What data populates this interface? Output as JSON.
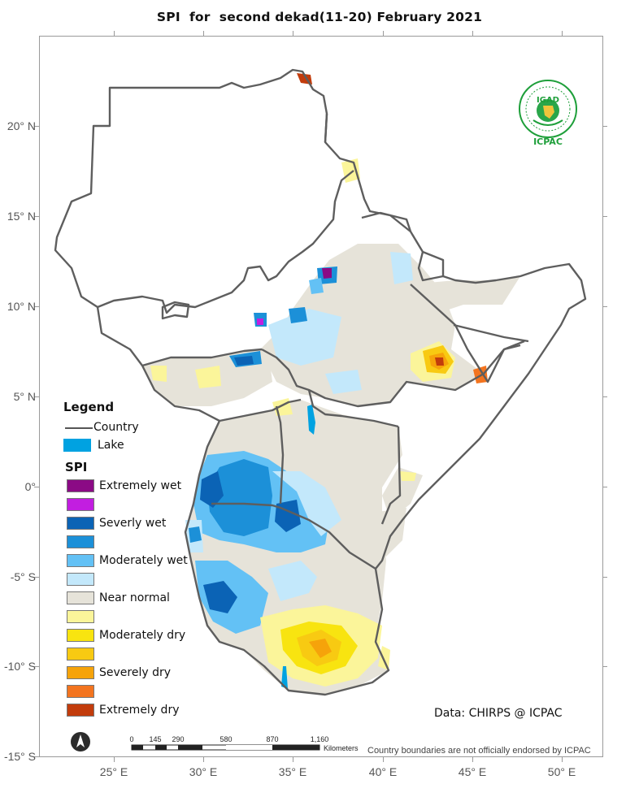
{
  "title": "SPI  for  second dekad(11-20) February 2021",
  "axes": {
    "lat_labels": [
      "20° N",
      "15° N",
      "10° N",
      "5° N",
      "0°",
      "-5° S",
      "-10° S",
      "-15° S"
    ],
    "lon_labels": [
      "25° E",
      "30° E",
      "35° E",
      "40° E",
      "45° E",
      "50° E"
    ]
  },
  "legend": {
    "title": "Legend",
    "country_label": "Country",
    "lake_label": "Lake",
    "lake_color": "#00a2e1",
    "spi_title": "SPI",
    "spi_classes": [
      {
        "label": "Extremely wet",
        "color": "#8b0a85"
      },
      {
        "label": "",
        "color": "#c21ee0"
      },
      {
        "label": "Severly wet",
        "color": "#0b63b5"
      },
      {
        "label": "",
        "color": "#1c90d8"
      },
      {
        "label": "Moderately wet",
        "color": "#63c1f5"
      },
      {
        "label": "",
        "color": "#c3e8fb"
      },
      {
        "label": "Near normal",
        "color": "#e6e3d9"
      },
      {
        "label": "",
        "color": "#fbf59a"
      },
      {
        "label": "Moderately dry",
        "color": "#f8e410"
      },
      {
        "label": "",
        "color": "#f8ca12"
      },
      {
        "label": "Severely dry",
        "color": "#f6a30a"
      },
      {
        "label": "",
        "color": "#f3741f"
      },
      {
        "label": "Extremely dry",
        "color": "#c23c0c"
      }
    ]
  },
  "data_source": "Data: CHIRPS @ ICPAC",
  "disclaimer": "Country boundaries are not officially endorsed by ICPAC",
  "scale_bar": {
    "labels": [
      "0",
      "145",
      "290",
      "580",
      "870",
      "1,160"
    ],
    "unit": "Kilometers"
  },
  "logo": {
    "top_text": "IGAD",
    "bottom_text": "ICPAC"
  },
  "icons": {
    "north_arrow": "north-arrow-icon",
    "logo": "igad-icpac-logo-icon"
  }
}
